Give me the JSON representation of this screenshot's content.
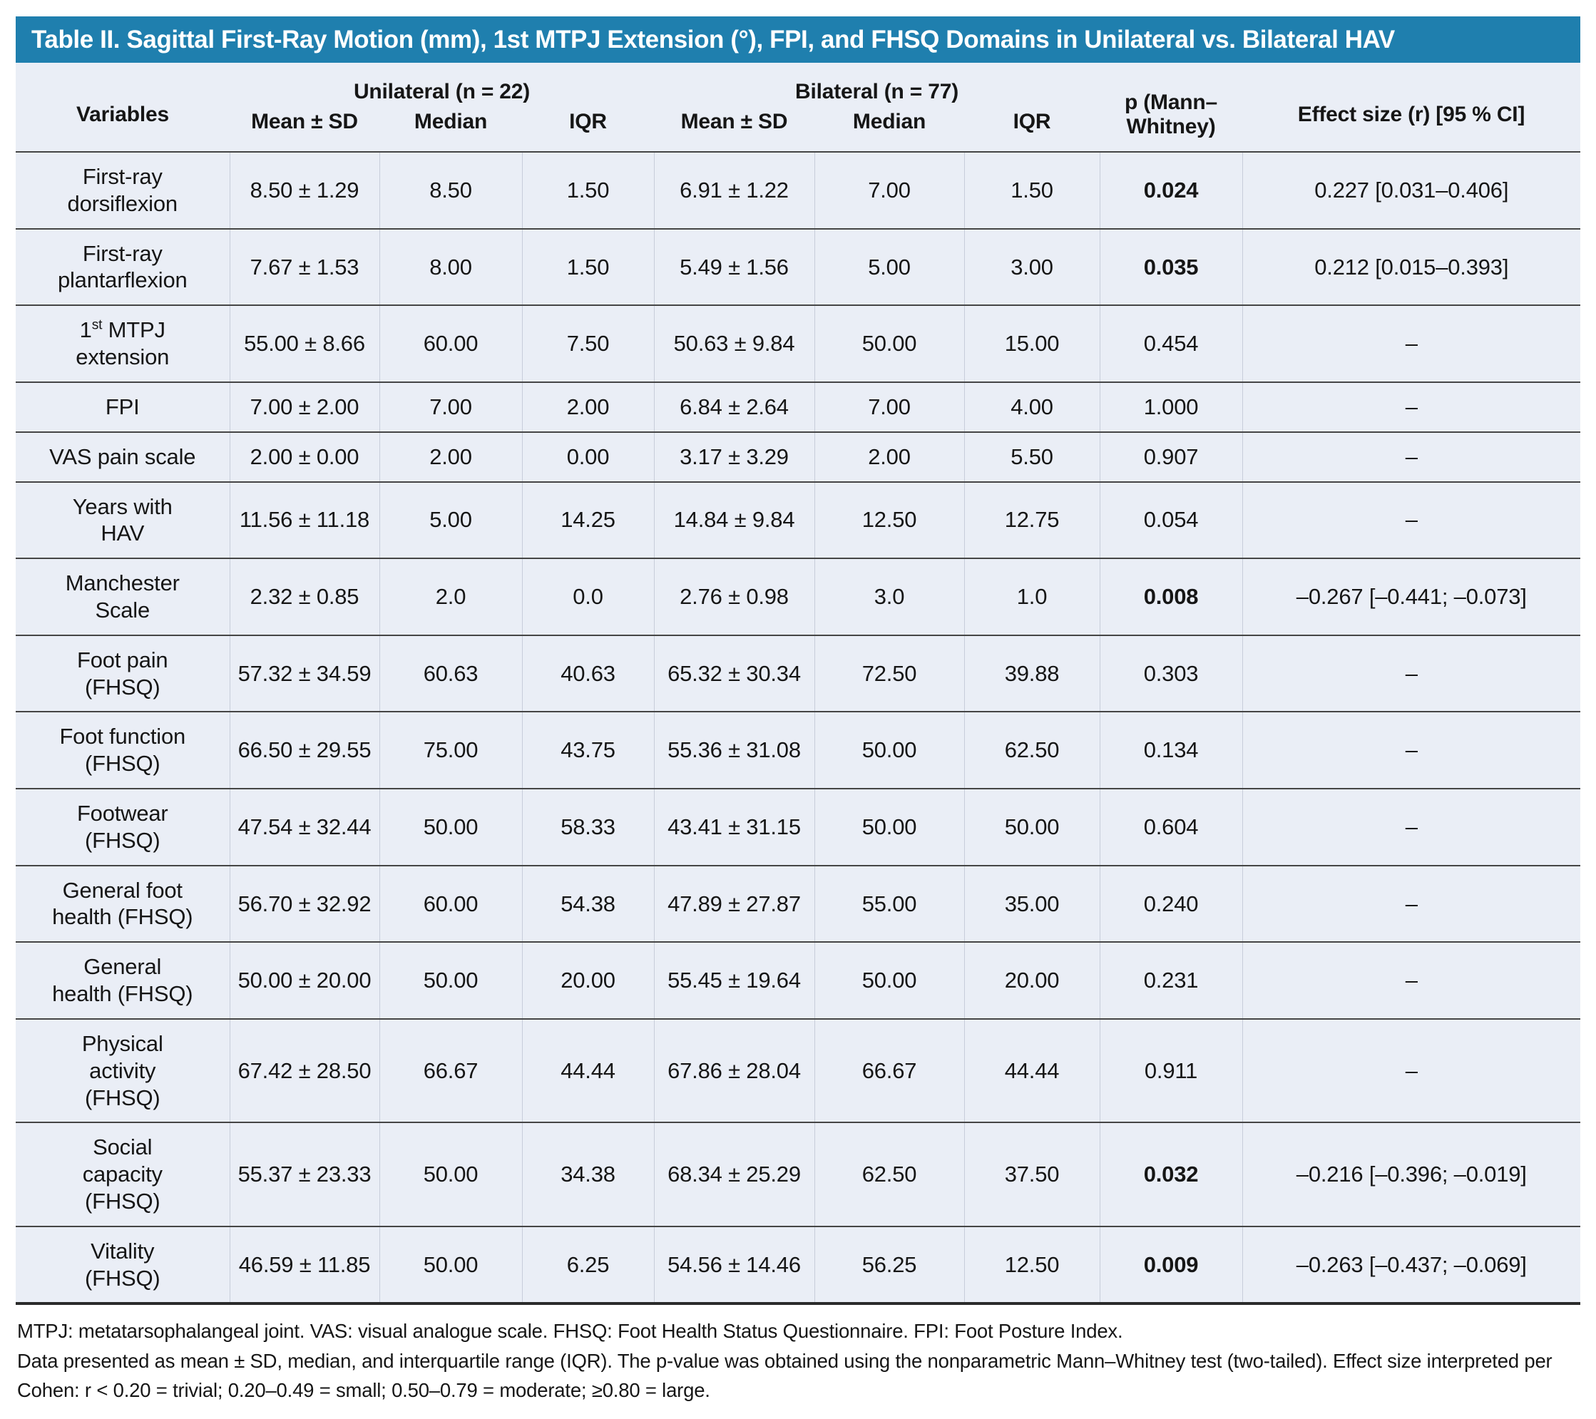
{
  "title": "Table II. Sagittal First-Ray Motion (mm), 1st MTPJ Extension (°), FPI, and FHSQ Domains in Unilateral vs. Bilateral HAV",
  "colors": {
    "header_bg": "#1f7fae",
    "body_bg": "#eaeef6"
  },
  "columns": {
    "variables": "Variables",
    "group_unilateral": "Unilateral (n = 22)",
    "group_bilateral": "Bilateral (n = 77)",
    "sub": [
      "Mean ± SD",
      "Median",
      "IQR"
    ],
    "p_header": "p (Mann–\nWhitney)",
    "effect_header": "Effect size (r) [95 % CI]"
  },
  "rows": [
    {
      "variable": "First-ray\ndorsiflexion",
      "uni_mean": "8.50 ± 1.29",
      "uni_median": "8.50",
      "uni_iqr": "1.50",
      "bi_mean": "6.91 ± 1.22",
      "bi_median": "7.00",
      "bi_iqr": "1.50",
      "p": "0.024",
      "p_bold": true,
      "effect": "0.227 [0.031–0.406]"
    },
    {
      "variable": "First-ray\nplantarflexion",
      "uni_mean": "7.67 ± 1.53",
      "uni_median": "8.00",
      "uni_iqr": "1.50",
      "bi_mean": "5.49 ± 1.56",
      "bi_median": "5.00",
      "bi_iqr": "3.00",
      "p": "0.035",
      "p_bold": true,
      "effect": "0.212 [0.015–0.393]"
    },
    {
      "variable": "1st MTPJ\nextension",
      "sup": "st",
      "uni_mean": "55.00 ± 8.66",
      "uni_median": "60.00",
      "uni_iqr": "7.50",
      "bi_mean": "50.63 ± 9.84",
      "bi_median": "50.00",
      "bi_iqr": "15.00",
      "p": "0.454",
      "p_bold": false,
      "effect": "–"
    },
    {
      "variable": "FPI",
      "uni_mean": "7.00 ± 2.00",
      "uni_median": "7.00",
      "uni_iqr": "2.00",
      "bi_mean": "6.84 ± 2.64",
      "bi_median": "7.00",
      "bi_iqr": "4.00",
      "p": "1.000",
      "p_bold": false,
      "effect": "–"
    },
    {
      "variable": "VAS pain scale",
      "uni_mean": "2.00 ± 0.00",
      "uni_median": "2.00",
      "uni_iqr": "0.00",
      "bi_mean": "3.17 ± 3.29",
      "bi_median": "2.00",
      "bi_iqr": "5.50",
      "p": "0.907",
      "p_bold": false,
      "effect": "–"
    },
    {
      "variable": "Years with\nHAV",
      "uni_mean": "11.56 ± 11.18",
      "uni_median": "5.00",
      "uni_iqr": "14.25",
      "bi_mean": "14.84 ± 9.84",
      "bi_median": "12.50",
      "bi_iqr": "12.75",
      "p": "0.054",
      "p_bold": false,
      "effect": "–"
    },
    {
      "variable": "Manchester\nScale",
      "uni_mean": "2.32 ± 0.85",
      "uni_median": "2.0",
      "uni_iqr": "0.0",
      "bi_mean": "2.76 ± 0.98",
      "bi_median": "3.0",
      "bi_iqr": "1.0",
      "p": "0.008",
      "p_bold": true,
      "effect": "–0.267 [–0.441; –0.073]"
    },
    {
      "variable": "Foot pain\n(FHSQ)",
      "uni_mean": "57.32 ± 34.59",
      "uni_median": "60.63",
      "uni_iqr": "40.63",
      "bi_mean": "65.32 ± 30.34",
      "bi_median": "72.50",
      "bi_iqr": "39.88",
      "p": "0.303",
      "p_bold": false,
      "effect": "–"
    },
    {
      "variable": "Foot function\n(FHSQ)",
      "uni_mean": "66.50 ± 29.55",
      "uni_median": "75.00",
      "uni_iqr": "43.75",
      "bi_mean": "55.36 ± 31.08",
      "bi_median": "50.00",
      "bi_iqr": "62.50",
      "p": "0.134",
      "p_bold": false,
      "effect": "–"
    },
    {
      "variable": "Footwear\n(FHSQ)",
      "uni_mean": "47.54 ± 32.44",
      "uni_median": "50.00",
      "uni_iqr": "58.33",
      "bi_mean": "43.41 ± 31.15",
      "bi_median": "50.00",
      "bi_iqr": "50.00",
      "p": "0.604",
      "p_bold": false,
      "effect": "–"
    },
    {
      "variable": "General foot\nhealth (FHSQ)",
      "uni_mean": "56.70 ± 32.92",
      "uni_median": "60.00",
      "uni_iqr": "54.38",
      "bi_mean": "47.89 ± 27.87",
      "bi_median": "55.00",
      "bi_iqr": "35.00",
      "p": "0.240",
      "p_bold": false,
      "effect": "–"
    },
    {
      "variable": "General\nhealth (FHSQ)",
      "uni_mean": "50.00 ± 20.00",
      "uni_median": "50.00",
      "uni_iqr": "20.00",
      "bi_mean": "55.45 ± 19.64",
      "bi_median": "50.00",
      "bi_iqr": "20.00",
      "p": "0.231",
      "p_bold": false,
      "effect": "–"
    },
    {
      "variable": "Physical\nactivity\n(FHSQ)",
      "uni_mean": "67.42 ± 28.50",
      "uni_median": "66.67",
      "uni_iqr": "44.44",
      "bi_mean": "67.86 ± 28.04",
      "bi_median": "66.67",
      "bi_iqr": "44.44",
      "p": "0.911",
      "p_bold": false,
      "effect": "–"
    },
    {
      "variable": "Social\ncapacity\n(FHSQ)",
      "uni_mean": "55.37 ± 23.33",
      "uni_median": "50.00",
      "uni_iqr": "34.38",
      "bi_mean": "68.34 ± 25.29",
      "bi_median": "62.50",
      "bi_iqr": "37.50",
      "p": "0.032",
      "p_bold": true,
      "effect": "–0.216 [–0.396; –0.019]"
    },
    {
      "variable": "Vitality\n(FHSQ)",
      "uni_mean": "46.59 ± 11.85",
      "uni_median": "50.00",
      "uni_iqr": "6.25",
      "bi_mean": "54.56 ± 14.46",
      "bi_median": "56.25",
      "bi_iqr": "12.50",
      "p": "0.009",
      "p_bold": true,
      "effect": "–0.263 [–0.437; –0.069]"
    }
  ],
  "footnotes": [
    "MTPJ: metatarsophalangeal joint. VAS: visual analogue scale. FHSQ: Foot Health Status Questionnaire. FPI: Foot Posture Index.",
    "Data presented as mean ± SD, median, and interquartile range (IQR). The p-value was obtained using the nonparametric Mann–Whitney test (two-tailed). Effect size interpreted per Cohen: r < 0.20 = trivial; 0.20–0.49 = small; 0.50–0.79 = moderate; ≥0.80 = large."
  ]
}
